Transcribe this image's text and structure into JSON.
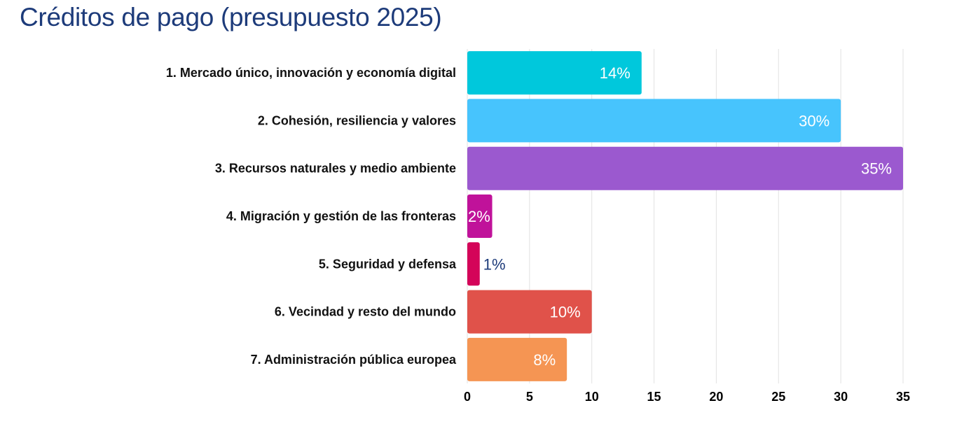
{
  "chart_data": {
    "type": "bar",
    "orientation": "horizontal",
    "title": "Créditos de pago (presupuesto 2025)",
    "xlabel": "",
    "ylabel": "",
    "xlim": [
      0,
      35
    ],
    "x_ticks": [
      0,
      5,
      10,
      15,
      20,
      25,
      30,
      35
    ],
    "grid": "vertical",
    "legend": "none",
    "categories": [
      "1. Mercado único, innovación y economía digital",
      "2. Cohesión, resiliencia y valores",
      "3. Recursos naturales y medio ambiente",
      "4. Migración y gestión de las fronteras",
      "5. Seguridad y defensa",
      "6. Vecindad y resto del mundo",
      "7. Administración pública europea"
    ],
    "values": [
      14,
      30,
      35,
      2,
      1,
      10,
      8
    ],
    "data_labels": [
      "14%",
      "30%",
      "35%",
      "2%",
      "1%",
      "10%",
      "8%"
    ],
    "colors": [
      "#00c8dc",
      "#47c4fd",
      "#9b59cf",
      "#c0129a",
      "#d40459",
      "#e0524a",
      "#f59553"
    ],
    "label_color_inside": "#ffffff",
    "label_color_outside": "#1d3b7a"
  }
}
